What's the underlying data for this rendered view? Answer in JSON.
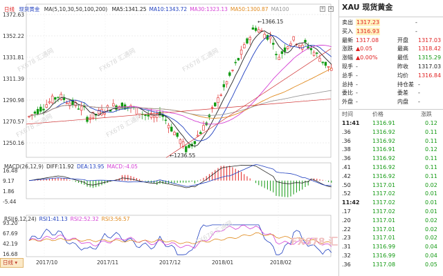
{
  "chart": {
    "period_label": "日线",
    "instrument_label": "现货黄金",
    "ma_title": "MA(5,10,30,50,100,200)",
    "ma": [
      {
        "label": "MA5:1341.25",
        "color": "#222222"
      },
      {
        "label": "MA10:1343.72",
        "color": "#1f3fbf"
      },
      {
        "label": "MA30:1323.13",
        "color": "#d43fd4"
      },
      {
        "label": "MA50:1300.87",
        "color": "#e08a1e"
      },
      {
        "label": "MA100",
        "color": "#999999"
      }
    ],
    "price_ticks": [
      "1372.63",
      "1352.22",
      "1331.81",
      "1311.39",
      "1290.98",
      "1270.57",
      "1250.16"
    ],
    "annotations": {
      "high": "1366.15",
      "low": "1236.55"
    },
    "macd_legend": [
      {
        "label": "MACD(26,12,9)",
        "color": "#333333"
      },
      {
        "label": "DIFF:11.92",
        "color": "#222222"
      },
      {
        "label": "DEA:13.95",
        "color": "#1f3fbf"
      },
      {
        "label": "MACD:-4.05",
        "color": "#d43fd4"
      }
    ],
    "macd_ticks": [
      "16.48",
      "9.17",
      "1.86",
      "-5.44"
    ],
    "rsi_legend": [
      {
        "label": "RSI(6,12,24)",
        "color": "#333333"
      },
      {
        "label": "RSI1:41.13",
        "color": "#1f3fbf"
      },
      {
        "label": "RSI2:52.32",
        "color": "#d43fd4"
      },
      {
        "label": "RSI3:56.57",
        "color": "#e08a1e"
      }
    ],
    "rsi_ticks": [
      "93.20",
      "67.69",
      "42.19",
      "16.68"
    ],
    "x_ticks": [
      "2017/10",
      "2017/11",
      "2017/12",
      "2018/01",
      "2018/02"
    ],
    "watermark": "FX678 汇通网"
  },
  "quote": {
    "title": "XAU 现货黄金",
    "rows": [
      {
        "label": "卖出",
        "value": "1317.23",
        "value_color": "red",
        "extra": "-"
      },
      {
        "label": "买入",
        "value": "1316.93",
        "value_color": "red",
        "extra": "-"
      },
      {
        "label": "最新",
        "value": "1317.08",
        "value_color": "red",
        "label2": "开盘",
        "value2": "1317.03",
        "value2_color": "red"
      },
      {
        "label": "涨跌",
        "value": "▲0.05",
        "value_color": "red",
        "label2": "最高",
        "value2": "1318.42",
        "value2_color": "red"
      },
      {
        "label": "涨幅",
        "value": "▲0.00%",
        "value_color": "red",
        "label2": "最低",
        "value2": "1315.29",
        "value2_color": "green"
      },
      {
        "label": "现手",
        "value": "-",
        "value_color": "blk",
        "label2": "昨收",
        "value2": "1317.03",
        "value2_color": "blk"
      },
      {
        "label": "总手",
        "value": "-",
        "value_color": "blk",
        "label2": "均价",
        "value2": "1316.84",
        "value2_color": "red"
      },
      {
        "label": "总持",
        "value": "-",
        "value_color": "blk",
        "label2": "持仓差",
        "value2": "-",
        "value2_color": "blk"
      },
      {
        "label": "委比",
        "value": "-",
        "value_color": "blk",
        "label2": "委差",
        "value2": "-",
        "value2_color": "blk"
      },
      {
        "label": "外盘",
        "value": "-",
        "value_color": "blk",
        "label2": "内盘",
        "value2": "-",
        "value2_color": "blk"
      }
    ],
    "ticks_header": {
      "time": "时间",
      "price": "价格",
      "change": "涨跌"
    },
    "ticks": [
      {
        "time": "11:41",
        "price": "1316.91",
        "change": "0.12"
      },
      {
        "time": ".36",
        "price": "1316.92",
        "change": "0.11"
      },
      {
        "time": ".36",
        "price": "1316.92",
        "change": "0.11"
      },
      {
        "time": ".38",
        "price": "1316.91",
        "change": "0.12"
      },
      {
        "time": ".36",
        "price": "1316.92",
        "change": "0.11"
      },
      {
        "time": ".41",
        "price": "1316.92",
        "change": "0.11"
      },
      {
        "time": ".42",
        "price": "1316.92",
        "change": "0.11"
      },
      {
        "time": ".50",
        "price": "1317.01",
        "change": "0.02"
      },
      {
        "time": ".52",
        "price": "1317.02",
        "change": "0.01"
      },
      {
        "time": "11:42",
        "price": "1317.02",
        "change": "0.01"
      },
      {
        "time": ".17",
        "price": "1317.02",
        "change": "0.01"
      },
      {
        "time": ".20",
        "price": "1317.01",
        "change": "0.02"
      },
      {
        "time": ".22",
        "price": "1317.01",
        "change": "0.02"
      },
      {
        "time": ".23",
        "price": "1317.01",
        "change": "0.02"
      },
      {
        "time": ".31",
        "price": "1316.99",
        "change": "0.04"
      },
      {
        "time": ".32",
        "price": "1316.99",
        "change": "0.04"
      },
      {
        "time": ".36",
        "price": "1317.08",
        "change": "0.05"
      }
    ]
  }
}
